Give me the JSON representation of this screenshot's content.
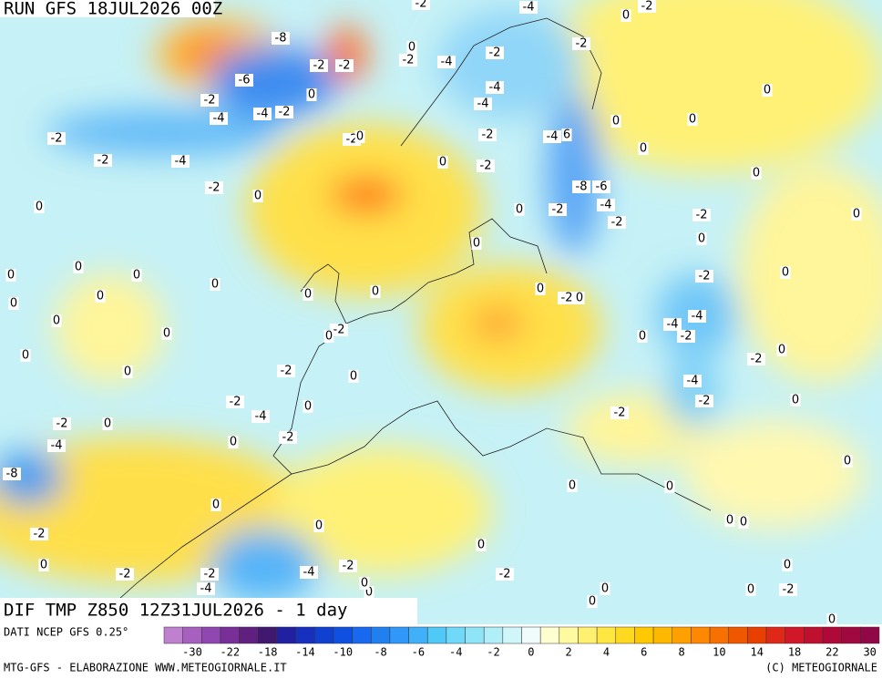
{
  "header": {
    "run": "RUN GFS 18JUL2026 00Z"
  },
  "map": {
    "title": "DIF TMP Z850 12Z31JUL2026 - 1 day",
    "contour_labels": [
      -8,
      -6,
      -2,
      -4,
      -4,
      -2,
      -2,
      -2,
      -4,
      -2,
      0,
      0,
      -2,
      -2,
      0,
      -2,
      0,
      0,
      -2,
      -2,
      0,
      -2,
      -4,
      -2,
      -4,
      -4,
      -4,
      -2,
      -2,
      0,
      -2,
      0,
      0,
      0,
      0,
      -4,
      6,
      -8,
      -6,
      -4,
      -2,
      -2,
      0,
      0,
      -2,
      0,
      0,
      0,
      0,
      0,
      0,
      0,
      0,
      0,
      0,
      0,
      0,
      0,
      -2,
      0,
      -2,
      0,
      -4,
      -4,
      -2,
      0,
      0,
      0,
      -2,
      0,
      0,
      -2,
      0,
      -2,
      0,
      -4,
      -2,
      0,
      -2,
      -4,
      0,
      -2,
      0,
      -2,
      -2,
      0,
      -4,
      -8,
      0,
      0,
      -2,
      0,
      0,
      -2,
      -4,
      -2,
      -2,
      -4,
      -2,
      0,
      0,
      0,
      0,
      0,
      0,
      0,
      0,
      -2,
      0,
      0,
      0,
      0
    ]
  },
  "colorbar": {
    "source": "DATI NCEP GFS 0.25°",
    "ticks": [
      -30,
      -22,
      -18,
      -14,
      -10,
      -8,
      -6,
      -4,
      -2,
      0,
      2,
      4,
      6,
      8,
      10,
      14,
      18,
      22,
      30
    ],
    "colors": [
      "#c080d0",
      "#a860c0",
      "#9048b0",
      "#783098",
      "#602080",
      "#401870",
      "#2020a0",
      "#1830c0",
      "#1040d0",
      "#1050e0",
      "#1868f0",
      "#2080f0",
      "#3098f8",
      "#40b0f8",
      "#50c8f8",
      "#70d8f8",
      "#90e4f8",
      "#b0eef8",
      "#d0f6fa",
      "#f0fcfc",
      "#ffffd0",
      "#fffaa0",
      "#fff070",
      "#ffe640",
      "#ffd820",
      "#ffc800",
      "#ffb800",
      "#ffa000",
      "#ff8800",
      "#f87000",
      "#f05800",
      "#e84000",
      "#e02818",
      "#d01828",
      "#c01030",
      "#b00838",
      "#a00840",
      "#900848"
    ]
  },
  "footer": {
    "left": "MTG-GFS - ELABORAZIONE WWW.METEOGIORNALE.IT",
    "right": "(C) METEOGIORNALE"
  }
}
